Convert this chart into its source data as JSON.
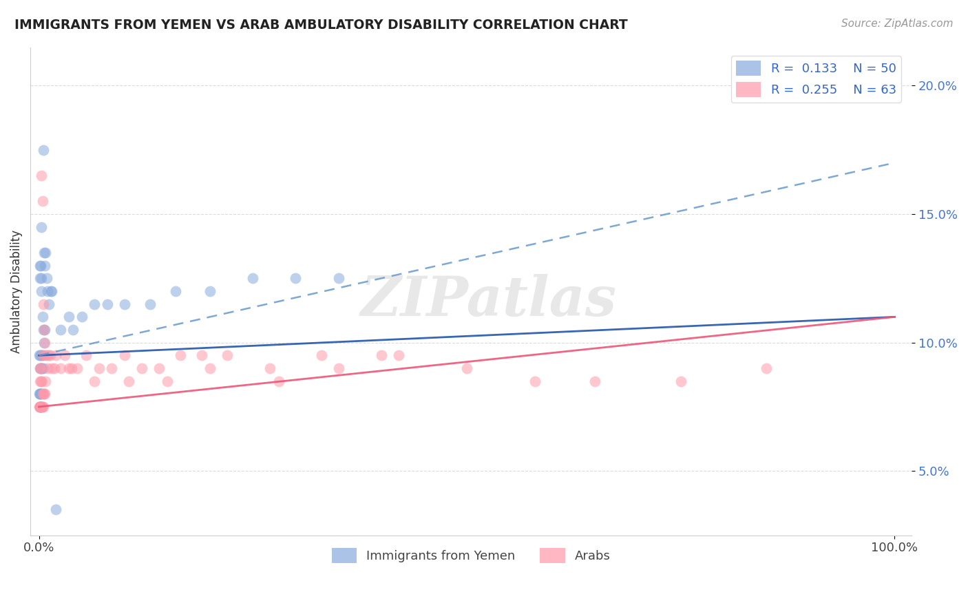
{
  "title": "IMMIGRANTS FROM YEMEN VS ARAB AMBULATORY DISABILITY CORRELATION CHART",
  "source": "Source: ZipAtlas.com",
  "ylabel": "Ambulatory Disability",
  "legend_r1": "R =  0.133",
  "legend_n1": "N = 50",
  "legend_r2": "R =  0.255",
  "legend_n2": "N = 63",
  "blue_color": "#88aadd",
  "pink_color": "#ff99aa",
  "line_blue_solid_color": "#2255aa",
  "line_blue_dash_color": "#6699cc",
  "line_pink_color": "#ee5577",
  "watermark_text": "ZIPatlas",
  "blue_scatter_x": [
    0.3,
    0.5,
    0.6,
    0.7,
    0.8,
    0.9,
    1.0,
    1.2,
    1.4,
    1.5,
    0.1,
    0.15,
    0.2,
    0.25,
    0.3,
    0.4,
    0.5,
    0.6,
    0.7,
    0.05,
    0.1,
    0.15,
    0.2,
    0.25,
    0.3,
    0.35,
    0.4,
    0.5,
    0.05,
    0.08,
    0.1,
    0.12,
    0.15,
    0.18,
    0.2,
    0.25,
    2.5,
    3.5,
    5.0,
    6.5,
    8.0,
    10.0,
    13.0,
    16.0,
    20.0,
    25.0,
    30.0,
    35.0,
    2.0,
    4.0
  ],
  "blue_scatter_y": [
    14.5,
    17.5,
    13.5,
    13.0,
    13.5,
    12.5,
    12.0,
    11.5,
    12.0,
    12.0,
    13.0,
    12.5,
    13.0,
    12.5,
    12.0,
    11.0,
    10.5,
    10.0,
    10.5,
    9.5,
    9.5,
    9.0,
    9.0,
    9.5,
    9.0,
    9.0,
    9.5,
    9.0,
    8.0,
    7.5,
    8.0,
    7.5,
    8.0,
    8.0,
    7.5,
    8.0,
    10.5,
    11.0,
    11.0,
    11.5,
    11.5,
    11.5,
    11.5,
    12.0,
    12.0,
    12.5,
    12.5,
    12.5,
    3.5,
    10.5
  ],
  "pink_scatter_x": [
    0.3,
    0.4,
    0.5,
    0.6,
    0.7,
    0.8,
    0.9,
    1.0,
    1.2,
    1.3,
    0.1,
    0.15,
    0.2,
    0.25,
    0.3,
    0.4,
    0.5,
    0.6,
    0.7,
    0.8,
    0.05,
    0.08,
    0.1,
    0.15,
    0.2,
    0.25,
    0.3,
    0.35,
    0.4,
    0.5,
    1.5,
    2.0,
    2.5,
    3.0,
    3.5,
    4.5,
    5.5,
    7.0,
    8.5,
    10.0,
    12.0,
    14.0,
    16.5,
    19.0,
    22.0,
    27.0,
    33.0,
    40.0,
    50.0,
    58.0,
    65.0,
    75.0,
    85.0,
    0.4,
    1.8,
    3.8,
    6.5,
    10.5,
    15.0,
    20.0,
    28.0,
    35.0,
    42.0
  ],
  "pink_scatter_y": [
    16.5,
    15.5,
    11.5,
    10.5,
    10.0,
    9.5,
    9.5,
    9.0,
    9.5,
    9.5,
    9.0,
    8.5,
    9.0,
    8.5,
    8.5,
    8.0,
    8.0,
    8.0,
    8.0,
    8.5,
    7.5,
    7.5,
    7.5,
    7.5,
    7.5,
    7.5,
    7.5,
    7.5,
    7.5,
    7.5,
    9.0,
    9.5,
    9.0,
    9.5,
    9.0,
    9.0,
    9.5,
    9.0,
    9.0,
    9.5,
    9.0,
    9.0,
    9.5,
    9.5,
    9.5,
    9.0,
    9.5,
    9.5,
    9.0,
    8.5,
    8.5,
    8.5,
    9.0,
    9.5,
    9.0,
    9.0,
    8.5,
    8.5,
    8.5,
    9.0,
    8.5,
    9.0,
    9.5
  ],
  "blue_line_x0": 0,
  "blue_line_x1": 100,
  "blue_line_y0": 9.5,
  "blue_line_y1": 11.0,
  "blue_dash_line_y0": 9.5,
  "blue_dash_line_y1": 17.0,
  "pink_line_y0": 7.5,
  "pink_line_y1": 11.0,
  "xlim": [
    -1,
    102
  ],
  "ylim": [
    2.5,
    21.5
  ],
  "ytick_vals": [
    5.0,
    10.0,
    15.0,
    20.0
  ],
  "xtick_positions": [
    0,
    100
  ],
  "xtick_labels": [
    "0.0%",
    "100.0%"
  ]
}
